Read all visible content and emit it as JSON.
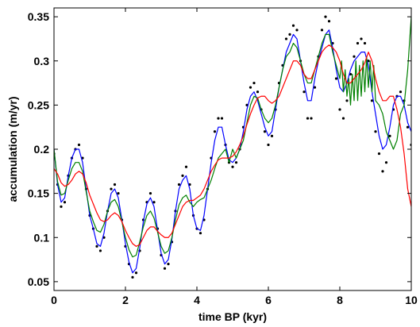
{
  "chart_data": {
    "type": "line",
    "title": "",
    "xlabel": "time BP (kyr)",
    "ylabel": "accumulation (m/yr)",
    "xlim": [
      0,
      10
    ],
    "ylim": [
      0.04,
      0.36
    ],
    "grid": false,
    "x_ticks": [
      0,
      2,
      4,
      6,
      8,
      10
    ],
    "y_ticks": [
      0.05,
      0.1,
      0.15,
      0.2,
      0.25,
      0.3,
      0.35
    ],
    "x_tick_labels": [
      "0",
      "2",
      "4",
      "6",
      "8",
      "10"
    ],
    "y_tick_labels": [
      "0.05",
      "0.1",
      "0.15",
      "0.2",
      "0.25",
      "0.3",
      "0.35"
    ],
    "series": [
      {
        "color": "#000000",
        "style": "dots",
        "x": [
          0,
          0.1,
          0.2,
          0.3,
          0.4,
          0.5,
          0.6,
          0.7,
          0.8,
          0.9,
          1.0,
          1.1,
          1.2,
          1.3,
          1.4,
          1.5,
          1.6,
          1.7,
          1.8,
          1.9,
          2.0,
          2.1,
          2.2,
          2.3,
          2.4,
          2.5,
          2.6,
          2.7,
          2.8,
          2.9,
          3.0,
          3.1,
          3.2,
          3.3,
          3.4,
          3.5,
          3.6,
          3.7,
          3.8,
          3.9,
          4.0,
          4.1,
          4.2,
          4.3,
          4.4,
          4.5,
          4.6,
          4.7,
          4.8,
          4.9,
          5.0,
          5.1,
          5.2,
          5.3,
          5.4,
          5.5,
          5.6,
          5.7,
          5.8,
          5.9,
          6.0,
          6.1,
          6.2,
          6.3,
          6.4,
          6.5,
          6.6,
          6.7,
          6.8,
          6.9,
          7.0,
          7.1,
          7.2,
          7.3,
          7.4,
          7.5,
          7.6,
          7.7,
          7.8,
          7.9,
          8.0,
          8.1,
          8.2,
          8.3,
          8.4,
          8.5,
          8.6,
          8.7,
          8.8,
          8.9,
          9.0,
          9.1,
          9.2,
          9.3,
          9.4,
          9.5,
          9.6,
          9.7,
          9.8,
          9.9,
          10.0
        ],
        "y": [
          0.195,
          0.16,
          0.135,
          0.14,
          0.17,
          0.19,
          0.2,
          0.205,
          0.19,
          0.155,
          0.125,
          0.11,
          0.09,
          0.085,
          0.1,
          0.13,
          0.155,
          0.16,
          0.15,
          0.12,
          0.09,
          0.07,
          0.055,
          0.06,
          0.085,
          0.12,
          0.14,
          0.15,
          0.14,
          0.11,
          0.08,
          0.065,
          0.07,
          0.095,
          0.13,
          0.16,
          0.17,
          0.18,
          0.16,
          0.125,
          0.11,
          0.105,
          0.12,
          0.155,
          0.19,
          0.22,
          0.235,
          0.235,
          0.205,
          0.185,
          0.18,
          0.185,
          0.2,
          0.225,
          0.25,
          0.27,
          0.275,
          0.265,
          0.245,
          0.22,
          0.205,
          0.215,
          0.245,
          0.275,
          0.295,
          0.325,
          0.33,
          0.34,
          0.335,
          0.3,
          0.265,
          0.235,
          0.235,
          0.27,
          0.305,
          0.335,
          0.35,
          0.345,
          0.32,
          0.28,
          0.245,
          0.235,
          0.255,
          0.285,
          0.305,
          0.32,
          0.325,
          0.32,
          0.3,
          0.255,
          0.22,
          0.195,
          0.175,
          0.185,
          0.215,
          0.245,
          0.26,
          0.265,
          0.255,
          0.225,
          0.205
        ]
      },
      {
        "color": "#0000ff",
        "style": "line",
        "x": [
          0,
          0.1,
          0.2,
          0.3,
          0.4,
          0.5,
          0.6,
          0.7,
          0.8,
          0.9,
          1.0,
          1.1,
          1.2,
          1.3,
          1.4,
          1.5,
          1.6,
          1.7,
          1.8,
          1.9,
          2.0,
          2.1,
          2.2,
          2.3,
          2.4,
          2.5,
          2.6,
          2.7,
          2.8,
          2.9,
          3.0,
          3.1,
          3.2,
          3.3,
          3.4,
          3.5,
          3.6,
          3.7,
          3.8,
          3.9,
          4.0,
          4.1,
          4.2,
          4.3,
          4.4,
          4.5,
          4.6,
          4.7,
          4.8,
          4.9,
          5.0,
          5.1,
          5.2,
          5.3,
          5.4,
          5.5,
          5.6,
          5.7,
          5.8,
          5.9,
          6.0,
          6.1,
          6.2,
          6.3,
          6.4,
          6.5,
          6.6,
          6.7,
          6.8,
          6.9,
          7.0,
          7.1,
          7.2,
          7.3,
          7.4,
          7.5,
          7.6,
          7.7,
          7.8,
          7.9,
          8.0,
          8.1,
          8.2,
          8.3,
          8.4,
          8.5,
          8.6,
          8.7,
          8.8,
          8.9,
          9.0,
          9.1,
          9.2,
          9.3,
          9.4,
          9.5,
          9.6,
          9.7,
          9.8,
          9.9,
          10.0
        ],
        "y": [
          0.2,
          0.16,
          0.14,
          0.145,
          0.17,
          0.19,
          0.2,
          0.2,
          0.185,
          0.155,
          0.125,
          0.11,
          0.093,
          0.09,
          0.105,
          0.13,
          0.15,
          0.155,
          0.145,
          0.12,
          0.093,
          0.072,
          0.06,
          0.065,
          0.088,
          0.118,
          0.138,
          0.145,
          0.135,
          0.108,
          0.082,
          0.07,
          0.075,
          0.098,
          0.13,
          0.155,
          0.165,
          0.17,
          0.155,
          0.125,
          0.11,
          0.108,
          0.125,
          0.155,
          0.185,
          0.21,
          0.225,
          0.225,
          0.205,
          0.188,
          0.185,
          0.19,
          0.2,
          0.22,
          0.245,
          0.26,
          0.265,
          0.255,
          0.24,
          0.225,
          0.215,
          0.22,
          0.245,
          0.27,
          0.29,
          0.31,
          0.32,
          0.33,
          0.325,
          0.3,
          0.275,
          0.255,
          0.255,
          0.28,
          0.3,
          0.315,
          0.33,
          0.335,
          0.315,
          0.29,
          0.27,
          0.265,
          0.275,
          0.29,
          0.3,
          0.305,
          0.31,
          0.31,
          0.295,
          0.265,
          0.24,
          0.215,
          0.2,
          0.205,
          0.225,
          0.25,
          0.26,
          0.26,
          0.25,
          0.23,
          0.22
        ]
      },
      {
        "color": "#008000",
        "style": "line",
        "x": [
          0,
          0.1,
          0.2,
          0.3,
          0.4,
          0.5,
          0.6,
          0.7,
          0.8,
          0.9,
          1.0,
          1.1,
          1.2,
          1.3,
          1.4,
          1.5,
          1.6,
          1.7,
          1.8,
          1.9,
          2.0,
          2.1,
          2.2,
          2.3,
          2.4,
          2.5,
          2.6,
          2.7,
          2.8,
          2.9,
          3.0,
          3.1,
          3.2,
          3.3,
          3.4,
          3.5,
          3.6,
          3.7,
          3.8,
          3.9,
          4.0,
          4.1,
          4.2,
          4.3,
          4.4,
          4.5,
          4.6,
          4.7,
          4.8,
          4.9,
          5.0,
          5.1,
          5.2,
          5.3,
          5.4,
          5.5,
          5.6,
          5.7,
          5.8,
          5.9,
          6.0,
          6.1,
          6.2,
          6.3,
          6.4,
          6.5,
          6.6,
          6.7,
          6.8,
          6.9,
          7.0,
          7.1,
          7.2,
          7.3,
          7.4,
          7.5,
          7.6,
          7.7,
          7.8,
          7.9,
          8.0,
          8.05,
          8.1,
          8.15,
          8.2,
          8.25,
          8.3,
          8.35,
          8.4,
          8.45,
          8.5,
          8.55,
          8.6,
          8.65,
          8.7,
          8.75,
          8.8,
          8.85,
          8.9,
          8.95,
          9.0,
          9.1,
          9.2,
          9.3,
          9.4,
          9.5,
          9.6,
          9.7,
          9.8,
          9.9,
          10.0
        ],
        "y": [
          0.2,
          0.163,
          0.148,
          0.15,
          0.165,
          0.178,
          0.185,
          0.185,
          0.175,
          0.152,
          0.13,
          0.118,
          0.108,
          0.106,
          0.115,
          0.13,
          0.14,
          0.143,
          0.135,
          0.118,
          0.1,
          0.086,
          0.078,
          0.08,
          0.095,
          0.112,
          0.125,
          0.13,
          0.122,
          0.106,
          0.09,
          0.082,
          0.085,
          0.1,
          0.12,
          0.137,
          0.145,
          0.148,
          0.14,
          0.135,
          0.14,
          0.143,
          0.145,
          0.155,
          0.165,
          0.178,
          0.19,
          0.195,
          0.2,
          0.185,
          0.2,
          0.19,
          0.2,
          0.21,
          0.23,
          0.25,
          0.26,
          0.258,
          0.245,
          0.235,
          0.23,
          0.235,
          0.25,
          0.27,
          0.29,
          0.305,
          0.31,
          0.32,
          0.315,
          0.3,
          0.285,
          0.275,
          0.275,
          0.29,
          0.305,
          0.32,
          0.33,
          0.33,
          0.31,
          0.295,
          0.28,
          0.3,
          0.265,
          0.29,
          0.26,
          0.28,
          0.25,
          0.285,
          0.255,
          0.3,
          0.255,
          0.295,
          0.26,
          0.3,
          0.265,
          0.305,
          0.27,
          0.3,
          0.265,
          0.295,
          0.255,
          0.25,
          0.24,
          0.22,
          0.21,
          0.2,
          0.21,
          0.24,
          0.25,
          0.29,
          0.35
        ]
      },
      {
        "color": "#ff0000",
        "style": "line",
        "x": [
          0,
          0.1,
          0.2,
          0.3,
          0.4,
          0.5,
          0.6,
          0.7,
          0.8,
          0.9,
          1.0,
          1.1,
          1.2,
          1.3,
          1.4,
          1.5,
          1.6,
          1.7,
          1.8,
          1.9,
          2.0,
          2.1,
          2.2,
          2.3,
          2.4,
          2.5,
          2.6,
          2.7,
          2.8,
          2.9,
          3.0,
          3.1,
          3.2,
          3.3,
          3.4,
          3.5,
          3.6,
          3.7,
          3.8,
          3.9,
          4.0,
          4.1,
          4.2,
          4.3,
          4.4,
          4.5,
          4.6,
          4.7,
          4.8,
          4.9,
          5.0,
          5.1,
          5.2,
          5.3,
          5.4,
          5.5,
          5.6,
          5.7,
          5.8,
          5.9,
          6.0,
          6.1,
          6.2,
          6.3,
          6.4,
          6.5,
          6.6,
          6.7,
          6.8,
          6.9,
          7.0,
          7.1,
          7.2,
          7.3,
          7.4,
          7.5,
          7.6,
          7.7,
          7.8,
          7.9,
          8.0,
          8.1,
          8.2,
          8.3,
          8.4,
          8.5,
          8.6,
          8.7,
          8.8,
          8.9,
          9.0,
          9.1,
          9.2,
          9.3,
          9.4,
          9.5,
          9.6,
          9.7,
          9.8,
          9.9,
          10.0
        ],
        "y": [
          0.178,
          0.172,
          0.162,
          0.158,
          0.16,
          0.165,
          0.172,
          0.175,
          0.172,
          0.162,
          0.148,
          0.138,
          0.128,
          0.12,
          0.118,
          0.12,
          0.125,
          0.128,
          0.125,
          0.118,
          0.108,
          0.1,
          0.093,
          0.09,
          0.092,
          0.1,
          0.108,
          0.112,
          0.112,
          0.107,
          0.103,
          0.1,
          0.1,
          0.105,
          0.115,
          0.125,
          0.135,
          0.14,
          0.142,
          0.142,
          0.145,
          0.148,
          0.155,
          0.165,
          0.175,
          0.182,
          0.188,
          0.19,
          0.19,
          0.19,
          0.192,
          0.197,
          0.205,
          0.215,
          0.228,
          0.24,
          0.25,
          0.258,
          0.26,
          0.26,
          0.255,
          0.252,
          0.255,
          0.26,
          0.27,
          0.28,
          0.29,
          0.3,
          0.3,
          0.295,
          0.285,
          0.28,
          0.28,
          0.29,
          0.3,
          0.31,
          0.315,
          0.318,
          0.315,
          0.31,
          0.3,
          0.285,
          0.275,
          0.275,
          0.28,
          0.285,
          0.29,
          0.298,
          0.31,
          0.3,
          0.28,
          0.265,
          0.255,
          0.255,
          0.26,
          0.26,
          0.245,
          0.225,
          0.195,
          0.155,
          0.135
        ]
      }
    ]
  }
}
